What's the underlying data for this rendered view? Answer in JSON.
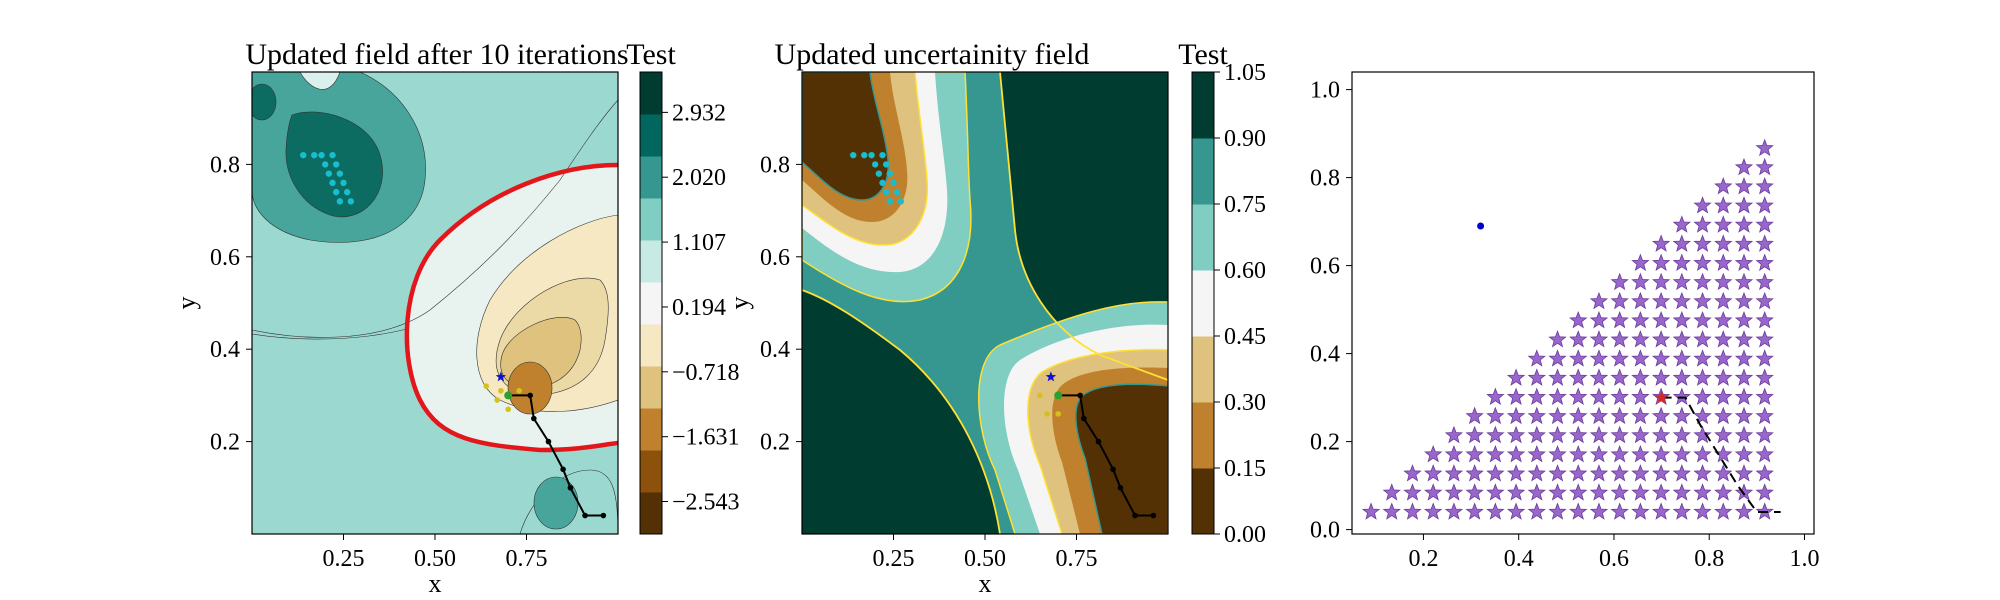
{
  "chart_data": [
    {
      "type": "contour",
      "title": "Updated field after 10 iterations",
      "xlabel": "x",
      "ylabel": "y",
      "xlim": [
        0.0,
        1.0
      ],
      "ylim": [
        0.0,
        1.0
      ],
      "x_ticks": [
        "0.25",
        "0.50",
        "0.75"
      ],
      "y_ticks": [
        "0.2",
        "0.4",
        "0.6",
        "0.8"
      ],
      "colorbar": {
        "title": "Test",
        "ticks": [
          "2.932",
          "2.020",
          "1.107",
          "0.194",
          "−0.718",
          "−1.631",
          "−2.543"
        ],
        "tick_values": [
          2.932,
          2.02,
          1.107,
          0.194,
          -0.718,
          -1.631,
          -2.543
        ],
        "range": [
          -3.0,
          3.5
        ],
        "colors": [
          "#543005",
          "#8c510a",
          "#bf812d",
          "#dfc27d",
          "#f6e8c3",
          "#f5f5f5",
          "#c7eae5",
          "#80cdc1",
          "#35978f",
          "#01665e",
          "#003c30"
        ]
      },
      "zero_contour_color": "#e3171b",
      "path_points": [
        [
          0.7,
          0.3
        ],
        [
          0.76,
          0.3
        ],
        [
          0.77,
          0.25
        ],
        [
          0.81,
          0.2
        ],
        [
          0.85,
          0.14
        ],
        [
          0.87,
          0.1
        ],
        [
          0.91,
          0.04
        ],
        [
          0.96,
          0.04
        ]
      ],
      "cyan_points": [
        [
          0.14,
          0.82
        ],
        [
          0.17,
          0.82
        ],
        [
          0.19,
          0.82
        ],
        [
          0.22,
          0.82
        ],
        [
          0.2,
          0.8
        ],
        [
          0.23,
          0.8
        ],
        [
          0.21,
          0.78
        ],
        [
          0.24,
          0.78
        ],
        [
          0.22,
          0.76
        ],
        [
          0.25,
          0.76
        ],
        [
          0.23,
          0.74
        ],
        [
          0.26,
          0.74
        ],
        [
          0.24,
          0.72
        ],
        [
          0.27,
          0.72
        ]
      ],
      "yellow_points": [
        [
          0.64,
          0.32
        ],
        [
          0.67,
          0.29
        ],
        [
          0.7,
          0.27
        ],
        [
          0.73,
          0.31
        ],
        [
          0.68,
          0.31
        ]
      ],
      "blue_star": [
        0.68,
        0.34
      ],
      "green_point": [
        0.7,
        0.3
      ]
    },
    {
      "type": "contour",
      "title": "Updated uncertainity field",
      "xlabel": "x",
      "ylabel": "y",
      "xlim": [
        0.0,
        1.0
      ],
      "ylim": [
        0.0,
        1.0
      ],
      "x_ticks": [
        "0.25",
        "0.50",
        "0.75"
      ],
      "y_ticks": [
        "0.2",
        "0.4",
        "0.6",
        "0.8"
      ],
      "colorbar": {
        "title": "Test",
        "ticks": [
          "1.05",
          "0.90",
          "0.75",
          "0.60",
          "0.45",
          "0.30",
          "0.15",
          "0.00"
        ],
        "tick_values": [
          1.05,
          0.9,
          0.75,
          0.6,
          0.45,
          0.3,
          0.15,
          0.0
        ],
        "range": [
          0.0,
          1.05
        ],
        "colors": [
          "#543005",
          "#bf812d",
          "#dfc27d",
          "#f5f5f5",
          "#80cdc1",
          "#35978f",
          "#003c30"
        ]
      },
      "contour_line_color": "#ffe033",
      "path_points": [
        [
          0.7,
          0.3
        ],
        [
          0.76,
          0.3
        ],
        [
          0.77,
          0.25
        ],
        [
          0.81,
          0.2
        ],
        [
          0.85,
          0.14
        ],
        [
          0.87,
          0.1
        ],
        [
          0.91,
          0.04
        ],
        [
          0.96,
          0.04
        ]
      ],
      "cyan_points": [
        [
          0.14,
          0.82
        ],
        [
          0.17,
          0.82
        ],
        [
          0.19,
          0.82
        ],
        [
          0.22,
          0.82
        ],
        [
          0.2,
          0.8
        ],
        [
          0.23,
          0.8
        ],
        [
          0.21,
          0.78
        ],
        [
          0.24,
          0.78
        ],
        [
          0.22,
          0.76
        ],
        [
          0.25,
          0.76
        ],
        [
          0.23,
          0.74
        ],
        [
          0.26,
          0.74
        ],
        [
          0.24,
          0.72
        ],
        [
          0.27,
          0.72
        ]
      ],
      "yellow_points": [
        [
          0.65,
          0.3
        ],
        [
          0.67,
          0.26
        ],
        [
          0.7,
          0.26
        ],
        [
          0.7,
          0.3
        ]
      ],
      "blue_star": [
        0.68,
        0.34
      ],
      "green_point": [
        0.7,
        0.3
      ]
    },
    {
      "type": "scatter",
      "title": "",
      "xlim": [
        0.05,
        1.02
      ],
      "ylim": [
        -0.01,
        1.04
      ],
      "x_ticks": [
        0.2,
        0.4,
        0.6,
        0.8,
        1.0
      ],
      "x_tick_labels": [
        "0.2",
        "0.4",
        "0.6",
        "0.8",
        "1.0"
      ],
      "y_ticks": [
        0.0,
        0.2,
        0.4,
        0.6,
        0.8,
        1.0
      ],
      "y_tick_labels": [
        "0.0",
        "0.2",
        "0.4",
        "0.6",
        "0.8",
        "1.0"
      ],
      "star_grid": {
        "spacing": 0.0435,
        "x_start": 0.09,
        "y_start": 0.04,
        "count_first_row": 20,
        "color": "#9966cc",
        "edge_color": "#6a3d9a"
      },
      "red_star": [
        0.7,
        0.3
      ],
      "blue_point": [
        0.32,
        0.69
      ],
      "path_points": [
        [
          0.7,
          0.3
        ],
        [
          0.75,
          0.3
        ],
        [
          0.78,
          0.24
        ],
        [
          0.82,
          0.17
        ],
        [
          0.86,
          0.1
        ],
        [
          0.9,
          0.04
        ],
        [
          0.95,
          0.04
        ]
      ],
      "colors": {
        "path": "#000000",
        "red_star": "#d62728",
        "blue_point": "#0000cc"
      }
    }
  ]
}
